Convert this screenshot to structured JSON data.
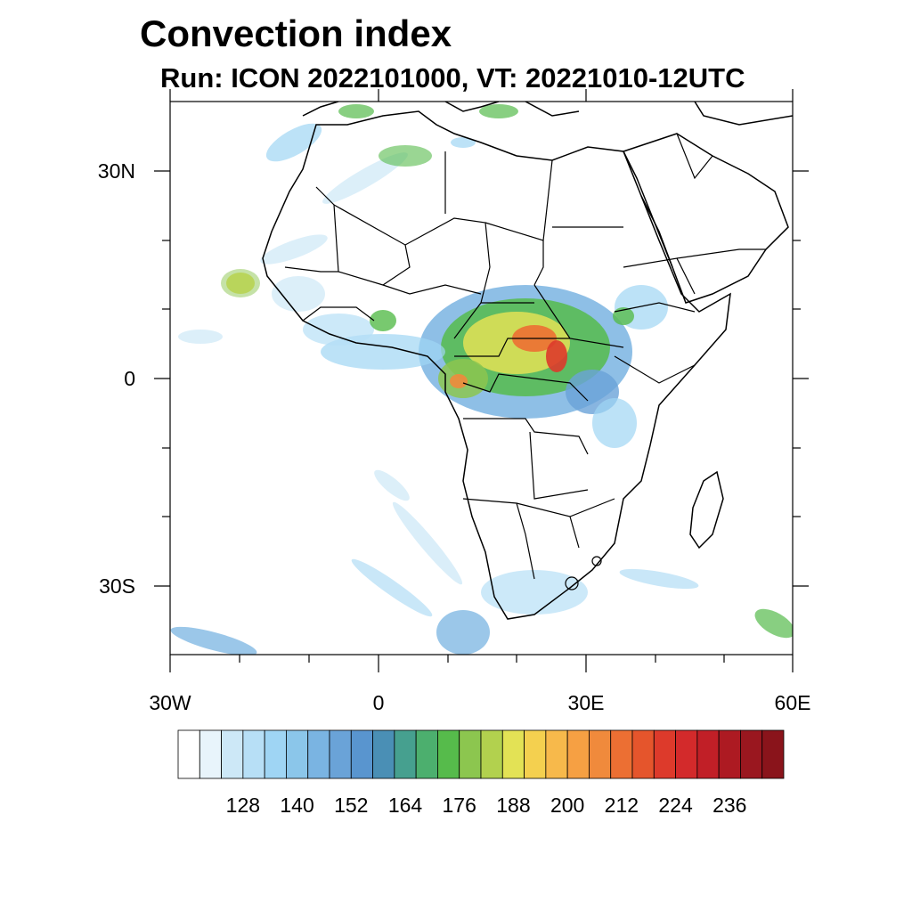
{
  "title": "Convection index",
  "subtitle": "Run: ICON 2022101000,  VT: 20221010-12UTC",
  "map": {
    "extent": {
      "lon": [
        -30,
        60
      ],
      "lat": [
        -40,
        40
      ]
    },
    "lat_labels": [
      "30N",
      "0",
      "30S"
    ],
    "lon_labels": [
      "30W",
      "0",
      "30E",
      "60E"
    ]
  },
  "legend": {
    "labels": [
      "128",
      "140",
      "152",
      "164",
      "176",
      "188",
      "200",
      "212",
      "224",
      "236"
    ],
    "colors": [
      "#ffffff",
      "#e8f4fb",
      "#cde8f7",
      "#b7dff6",
      "#9fd5f4",
      "#8bc6ea",
      "#7ab4e2",
      "#6aa3d8",
      "#5995cf",
      "#4a8fb5",
      "#46a08f",
      "#4caf6e",
      "#56bb4b",
      "#8cc64f",
      "#b2d14e",
      "#e3e255",
      "#f4d04f",
      "#f7b94b",
      "#f6a043",
      "#f08a3c",
      "#ec6f33",
      "#e5552c",
      "#dd3a2b",
      "#d32a2b",
      "#c11f27",
      "#ad1a22",
      "#9a171f",
      "#8a141b"
    ]
  }
}
